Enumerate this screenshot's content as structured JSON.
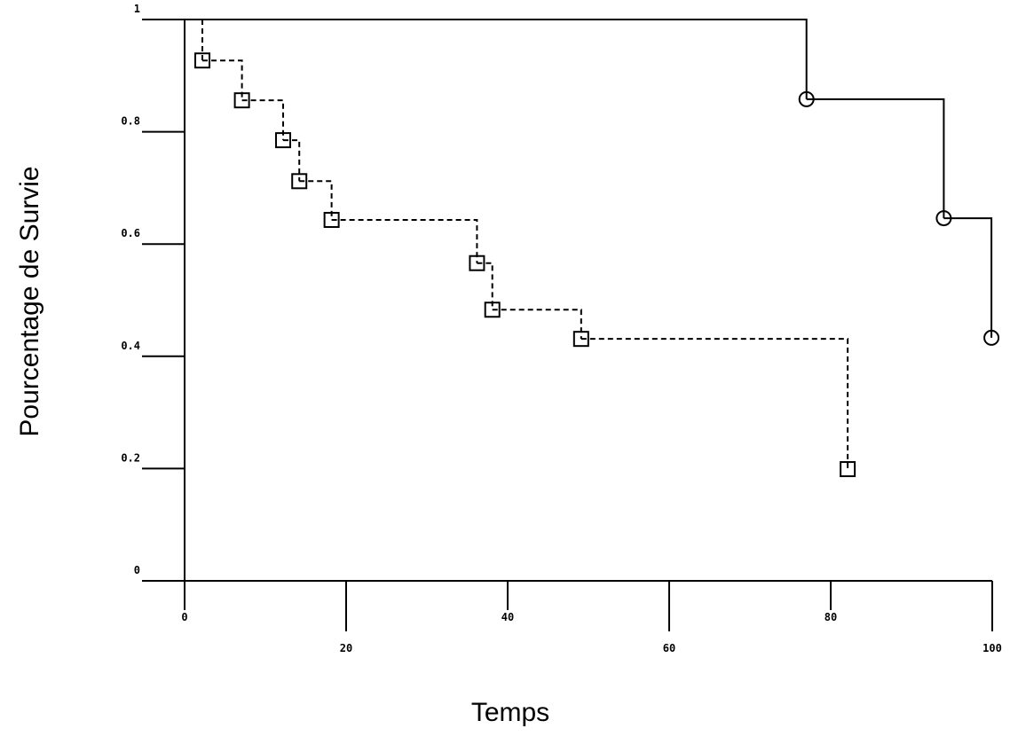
{
  "chart_data": {
    "type": "line",
    "step": true,
    "ylabel": "Pourcentage de Survie",
    "xlabel": "Temps",
    "xlim": [
      0,
      100
    ],
    "xticks": [
      0,
      20,
      40,
      60,
      80,
      100
    ],
    "ylim": [
      0,
      1
    ],
    "yticks": [
      0,
      0.2,
      0.4,
      0.6,
      0.8,
      1
    ],
    "series": [
      {
        "color": "#000000",
        "line": "dashed",
        "marker": "square",
        "x": [
          0,
          2.2,
          7.1,
          12.2,
          14.2,
          18.2,
          36.2,
          38.1,
          49.1,
          82.1
        ],
        "values": [
          1,
          0.927,
          0.856,
          0.785,
          0.712,
          0.643,
          0.566,
          0.483,
          0.431,
          0.199
        ]
      },
      {
        "color": "#000000",
        "line": "solid",
        "marker": "circle",
        "x": [
          0,
          77.0,
          94.0,
          99.9
        ],
        "values": [
          1,
          0.858,
          0.646,
          0.433
        ]
      }
    ]
  }
}
